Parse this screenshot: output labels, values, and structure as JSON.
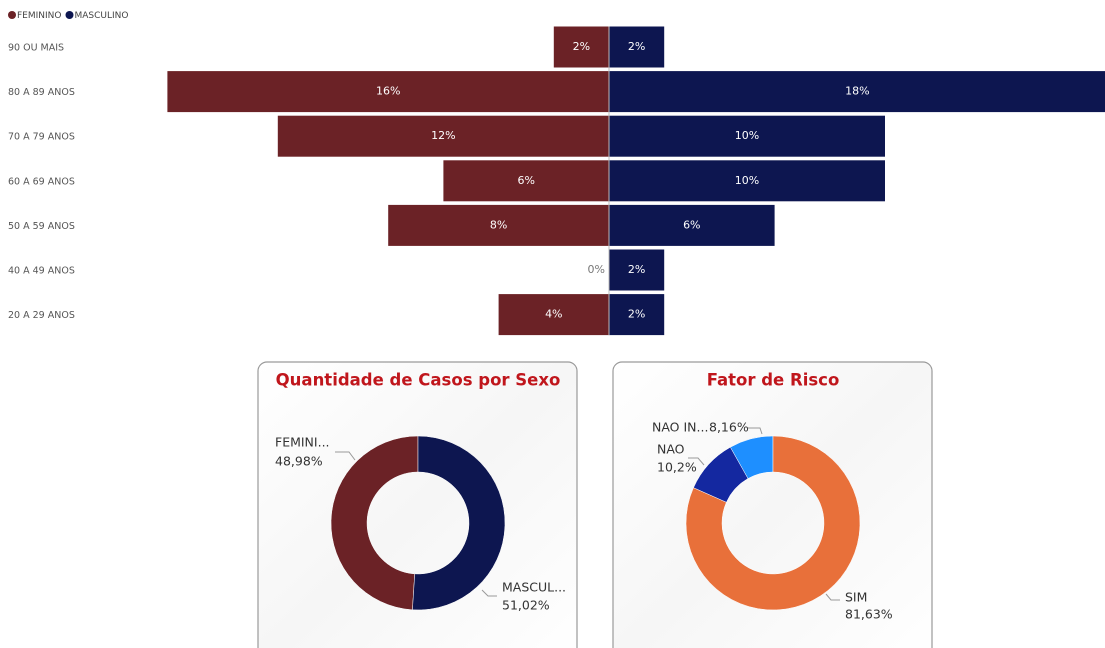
{
  "chart_data": [
    {
      "type": "bar",
      "orientation": "horizontal",
      "layout": "pyramid",
      "legend": "top-left",
      "categories": [
        "90 OU MAIS",
        "80 A 89 ANOS",
        "70 A 79 ANOS",
        "60 A 69 ANOS",
        "50 A 59 ANOS",
        "40 A 49 ANOS",
        "20 A 29 ANOS"
      ],
      "series": [
        {
          "name": "FEMININO",
          "color": "#6b2226",
          "values": [
            2,
            16,
            12,
            6,
            8,
            0,
            4
          ],
          "value_labels": [
            "2%",
            "16%",
            "12%",
            "6%",
            "8%",
            "0%",
            "4%"
          ]
        },
        {
          "name": "MASCULINO",
          "color": "#0d1650",
          "values": [
            2,
            18,
            10,
            10,
            6,
            2,
            2
          ],
          "value_labels": [
            "2%",
            "18%",
            "10%",
            "10%",
            "6%",
            "2%",
            "2%"
          ]
        }
      ]
    },
    {
      "type": "donut",
      "title": "Quantidade de Casos por Sexo",
      "categories": [
        "FEMINI...",
        "MASCUL..."
      ],
      "values": [
        48.98,
        51.02
      ],
      "value_labels": [
        "48,98%",
        "51,02%"
      ],
      "colors": [
        "#6b2226",
        "#0d1650"
      ]
    },
    {
      "type": "donut",
      "title": "Fator de Risco",
      "categories": [
        "NAO IN...",
        "NAO",
        "SIM"
      ],
      "values": [
        8.16,
        10.2,
        81.63
      ],
      "value_labels": [
        "8,16%",
        "10,2%",
        "81,63%"
      ],
      "colors": [
        "#1e8fff",
        "#1428a0",
        "#e8703a"
      ]
    }
  ]
}
